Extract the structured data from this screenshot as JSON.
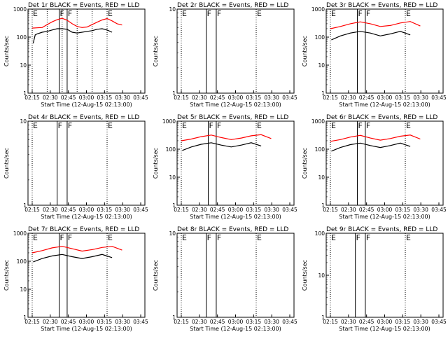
{
  "chart_data": [
    {
      "type": "line",
      "title": "Det 1r BLACK = Events, RED = LLD",
      "xlabel": "Start Time (12-Aug-15 02:13:00)",
      "ylabel": "Counts/sec",
      "y_scale": "log",
      "ylim": [
        1,
        1000
      ],
      "y_ticks": [
        "1",
        "10",
        "100",
        "1000"
      ],
      "x_ticks": [
        "02:15",
        "02:30",
        "02:45",
        "03:00",
        "03:15",
        "03:30",
        "03:45"
      ],
      "xlim_minutes": [
        15,
        233
      ],
      "markers": [
        {
          "label": "E",
          "x": 15,
          "style": "dotted"
        },
        {
          "label": "",
          "x": 30,
          "style": "dotted"
        },
        {
          "label": "F",
          "x": 42,
          "style": "solid"
        },
        {
          "label": "",
          "x": 45,
          "style": "dotted"
        },
        {
          "label": "F",
          "x": 50,
          "style": "solid"
        },
        {
          "label": "",
          "x": 60,
          "style": "dotted"
        },
        {
          "label": "",
          "x": 75,
          "style": "dotted"
        },
        {
          "label": "E",
          "x": 90,
          "style": "dotted"
        }
      ],
      "series": [
        {
          "name": "RED = LLD",
          "color": "#ff0000",
          "x": [
            15,
            20,
            25,
            30,
            35,
            40,
            45,
            50,
            55,
            60,
            65,
            70,
            75,
            80,
            85,
            90,
            95,
            100,
            105
          ],
          "y": [
            210,
            215,
            220,
            280,
            350,
            420,
            470,
            400,
            300,
            240,
            220,
            230,
            280,
            340,
            410,
            460,
            380,
            300,
            270
          ]
        },
        {
          "name": "BLACK = Events",
          "color": "#000000",
          "x": [
            16,
            18,
            20,
            25,
            30,
            35,
            40,
            45,
            50,
            55,
            60,
            65,
            70,
            75,
            80,
            85,
            90,
            95
          ],
          "y": [
            60,
            120,
            130,
            150,
            160,
            180,
            200,
            200,
            190,
            150,
            140,
            150,
            160,
            170,
            190,
            200,
            180,
            150
          ]
        }
      ]
    },
    {
      "type": "line",
      "title": "Det 2r BLACK = Events, RED = LLD",
      "xlabel": "Start Time (12-Aug-15 02:13:00)",
      "ylabel": "Counts/sec",
      "y_scale": "log",
      "ylim": [
        1,
        10
      ],
      "y_ticks": [
        "1",
        "10"
      ],
      "x_ticks": [
        "02:15",
        "02:30",
        "02:45",
        "03:00",
        "03:15",
        "03:30",
        "03:45"
      ],
      "xlim_minutes": [
        15,
        233
      ],
      "markers": [
        {
          "label": "E",
          "x": 15,
          "style": "dotted"
        },
        {
          "label": "F",
          "x": 40,
          "style": "solid"
        },
        {
          "label": "F",
          "x": 50,
          "style": "solid"
        },
        {
          "label": "E",
          "x": 90,
          "style": "dotted"
        }
      ],
      "series": []
    },
    {
      "type": "line",
      "title": "Det 3r BLACK = Events, RED = LLD",
      "xlabel": "Start Time (12-Aug-15 02:13:00)",
      "ylabel": "Counts/sec",
      "y_scale": "log",
      "ylim": [
        1,
        1000
      ],
      "y_ticks": [
        "1",
        "10",
        "100",
        "1000"
      ],
      "x_ticks": [
        "02:15",
        "02:30",
        "02:45",
        "03:00",
        "03:15",
        "03:30",
        "03:45"
      ],
      "xlim_minutes": [
        15,
        233
      ],
      "markers": [
        {
          "label": "E",
          "x": 15,
          "style": "dotted"
        },
        {
          "label": "F",
          "x": 42,
          "style": "solid"
        },
        {
          "label": "F",
          "x": 50,
          "style": "solid"
        },
        {
          "label": "E",
          "x": 90,
          "style": "dotted"
        }
      ],
      "series": [
        {
          "name": "RED = LLD",
          "color": "#ff0000",
          "x": [
            15,
            25,
            35,
            45,
            55,
            65,
            75,
            85,
            95,
            105
          ],
          "y": [
            200,
            240,
            300,
            350,
            300,
            240,
            260,
            320,
            360,
            250
          ]
        },
        {
          "name": "BLACK = Events",
          "color": "#000000",
          "x": [
            16,
            25,
            35,
            45,
            55,
            65,
            75,
            85,
            95
          ],
          "y": [
            80,
            110,
            140,
            160,
            140,
            110,
            130,
            160,
            120
          ]
        }
      ]
    },
    {
      "type": "line",
      "title": "Det 4r BLACK = Events, RED = LLD",
      "xlabel": "Start Time (12-Aug-15 02:13:00)",
      "ylabel": "Counts/sec",
      "y_scale": "log",
      "ylim": [
        1,
        10
      ],
      "y_ticks": [
        "1",
        "10"
      ],
      "x_ticks": [
        "02:15",
        "02:30",
        "02:45",
        "03:00",
        "03:15",
        "03:30",
        "03:45"
      ],
      "xlim_minutes": [
        15,
        233
      ],
      "markers": [
        {
          "label": "E",
          "x": 15,
          "style": "dotted"
        },
        {
          "label": "F",
          "x": 40,
          "style": "solid"
        },
        {
          "label": "F",
          "x": 50,
          "style": "solid"
        },
        {
          "label": "E",
          "x": 90,
          "style": "dotted"
        }
      ],
      "series": []
    },
    {
      "type": "line",
      "title": "Det 5r BLACK = Events, RED = LLD",
      "xlabel": "Start Time (12-Aug-15 02:13:00)",
      "ylabel": "Counts/sec",
      "y_scale": "log",
      "ylim": [
        1,
        1000
      ],
      "y_ticks": [
        "1",
        "10",
        "100",
        "1000"
      ],
      "x_ticks": [
        "02:15",
        "02:30",
        "02:45",
        "03:00",
        "03:15",
        "03:30",
        "03:45"
      ],
      "xlim_minutes": [
        15,
        233
      ],
      "markers": [
        {
          "label": "E",
          "x": 15,
          "style": "dotted"
        },
        {
          "label": "F",
          "x": 42,
          "style": "solid"
        },
        {
          "label": "F",
          "x": 50,
          "style": "solid"
        },
        {
          "label": "E",
          "x": 90,
          "style": "dotted"
        }
      ],
      "series": [
        {
          "name": "RED = LLD",
          "color": "#ff0000",
          "x": [
            15,
            25,
            35,
            45,
            55,
            65,
            75,
            85,
            95,
            105
          ],
          "y": [
            200,
            230,
            280,
            320,
            260,
            220,
            250,
            300,
            330,
            240
          ]
        },
        {
          "name": "BLACK = Events",
          "color": "#000000",
          "x": [
            16,
            25,
            35,
            45,
            55,
            65,
            75,
            85,
            95
          ],
          "y": [
            90,
            120,
            150,
            170,
            140,
            120,
            140,
            170,
            130
          ]
        }
      ]
    },
    {
      "type": "line",
      "title": "Det 6r BLACK = Events, RED = LLD",
      "xlabel": "Start Time (12-Aug-15 02:13:00)",
      "ylabel": "Counts/sec",
      "y_scale": "log",
      "ylim": [
        1,
        1000
      ],
      "y_ticks": [
        "1",
        "10",
        "100",
        "1000"
      ],
      "x_ticks": [
        "02:15",
        "02:30",
        "02:45",
        "03:00",
        "03:15",
        "03:30",
        "03:45"
      ],
      "xlim_minutes": [
        15,
        233
      ],
      "markers": [
        {
          "label": "E",
          "x": 15,
          "style": "dotted"
        },
        {
          "label": "F",
          "x": 42,
          "style": "solid"
        },
        {
          "label": "F",
          "x": 50,
          "style": "solid"
        },
        {
          "label": "E",
          "x": 90,
          "style": "dotted"
        }
      ],
      "series": [
        {
          "name": "RED = LLD",
          "color": "#ff0000",
          "x": [
            15,
            25,
            35,
            45,
            55,
            65,
            75,
            85,
            95,
            105
          ],
          "y": [
            190,
            220,
            270,
            310,
            250,
            210,
            240,
            290,
            320,
            230
          ]
        },
        {
          "name": "BLACK = Events",
          "color": "#000000",
          "x": [
            16,
            25,
            35,
            45,
            55,
            65,
            75,
            85,
            95
          ],
          "y": [
            85,
            115,
            145,
            165,
            135,
            115,
            135,
            165,
            125
          ]
        }
      ]
    },
    {
      "type": "line",
      "title": "Det 7r BLACK = Events, RED = LLD",
      "xlabel": "Start Time (12-Aug-15 02:13:00)",
      "ylabel": "Counts/sec",
      "y_scale": "log",
      "ylim": [
        1,
        1000
      ],
      "y_ticks": [
        "1",
        "10",
        "100",
        "1000"
      ],
      "x_ticks": [
        "02:15",
        "02:30",
        "02:45",
        "03:00",
        "03:15",
        "03:30",
        "03:45"
      ],
      "xlim_minutes": [
        15,
        233
      ],
      "markers": [
        {
          "label": "E",
          "x": 15,
          "style": "dotted"
        },
        {
          "label": "F",
          "x": 42,
          "style": "solid"
        },
        {
          "label": "F",
          "x": 50,
          "style": "solid"
        },
        {
          "label": "E",
          "x": 90,
          "style": "dotted"
        }
      ],
      "series": [
        {
          "name": "RED = LLD",
          "color": "#ff0000",
          "x": [
            15,
            25,
            35,
            45,
            55,
            65,
            75,
            85,
            95,
            105
          ],
          "y": [
            200,
            240,
            300,
            340,
            280,
            230,
            260,
            310,
            340,
            250
          ]
        },
        {
          "name": "BLACK = Events",
          "color": "#000000",
          "x": [
            16,
            25,
            35,
            45,
            55,
            65,
            75,
            85,
            95
          ],
          "y": [
            95,
            125,
            155,
            175,
            145,
            125,
            145,
            175,
            135
          ]
        }
      ]
    },
    {
      "type": "line",
      "title": "Det 8r BLACK = Events, RED = LLD",
      "xlabel": "Start Time (12-Aug-15 02:13:00)",
      "ylabel": "Counts/sec",
      "y_scale": "log",
      "ylim": [
        1,
        10
      ],
      "y_ticks": [
        "1",
        "10"
      ],
      "x_ticks": [
        "02:15",
        "02:30",
        "02:45",
        "03:00",
        "03:15",
        "03:30",
        "03:45"
      ],
      "xlim_minutes": [
        15,
        233
      ],
      "markers": [
        {
          "label": "E",
          "x": 15,
          "style": "dotted"
        },
        {
          "label": "F",
          "x": 40,
          "style": "solid"
        },
        {
          "label": "F",
          "x": 50,
          "style": "solid"
        },
        {
          "label": "E",
          "x": 90,
          "style": "dotted"
        }
      ],
      "series": []
    },
    {
      "type": "line",
      "title": "Det 9r BLACK = Events, RED = LLD",
      "xlabel": "Start Time (12-Aug-15 02:13:00)",
      "ylabel": "Counts/sec",
      "y_scale": "log",
      "ylim": [
        1,
        100
      ],
      "y_ticks": [
        "1",
        "10",
        "100"
      ],
      "x_ticks": [
        "02:15",
        "02:30",
        "02:45",
        "03:00",
        "03:15",
        "03:30",
        "03:45"
      ],
      "xlim_minutes": [
        15,
        233
      ],
      "markers": [
        {
          "label": "E",
          "x": 15,
          "style": "dotted"
        },
        {
          "label": "F",
          "x": 40,
          "style": "solid"
        },
        {
          "label": "F",
          "x": 50,
          "style": "solid"
        },
        {
          "label": "E",
          "x": 90,
          "style": "dotted"
        }
      ],
      "series": []
    }
  ]
}
